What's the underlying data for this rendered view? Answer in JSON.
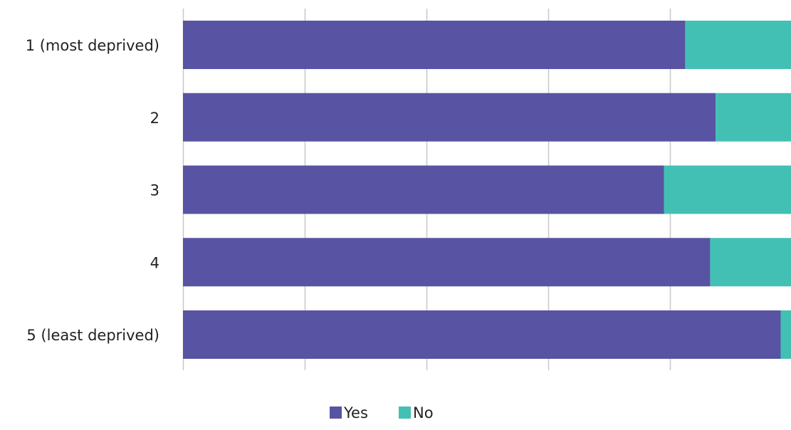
{
  "chart_data": {
    "type": "bar",
    "orientation": "horizontal",
    "stacked": "percent",
    "categories": [
      "1 (most deprived)",
      "2",
      "3",
      "4",
      "5 (least deprived)"
    ],
    "series": [
      {
        "name": "Yes",
        "values": [
          82.6,
          87.6,
          79.1,
          86.7,
          98.3
        ]
      },
      {
        "name": "No",
        "values": [
          17.4,
          12.4,
          20.9,
          13.3,
          1.7
        ]
      }
    ],
    "xlim": [
      0,
      100
    ],
    "grid": true,
    "legend_position": "bottom",
    "colors": {
      "Yes": "#5853A3",
      "No": "#43C0B4",
      "grid": "#C8C8C8",
      "text": "#222222"
    }
  }
}
